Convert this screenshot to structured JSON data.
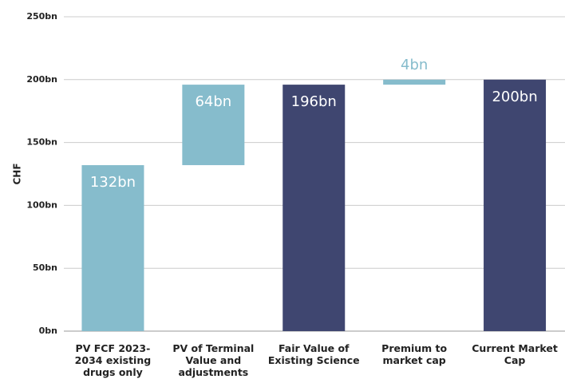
{
  "chart_data": {
    "type": "waterfall",
    "y_label": "CHF",
    "categories": [
      "PV FCF 2023-2034 existing drugs only",
      "PV of Terminal Value and adjustments",
      "Fair Value of Existing Science",
      "Premium to market cap",
      "Current Market Cap"
    ],
    "values": [
      132,
      64,
      196,
      4,
      200
    ],
    "value_labels": [
      "132bn",
      "64bn",
      "196bn",
      "4bn",
      "200bn"
    ],
    "measures": [
      "relative",
      "relative",
      "total",
      "relative",
      "total"
    ],
    "colors": {
      "relative": "#86bccc",
      "total": "#3f4670"
    },
    "ylim": [
      0,
      250
    ],
    "yticks": [
      {
        "value": 0,
        "label": "0bn"
      },
      {
        "value": 50,
        "label": "50bn"
      },
      {
        "value": 100,
        "label": "100bn"
      },
      {
        "value": 150,
        "label": "150bn"
      },
      {
        "value": 200,
        "label": "200bn"
      },
      {
        "value": 250,
        "label": "250bn"
      }
    ],
    "grid": true
  }
}
